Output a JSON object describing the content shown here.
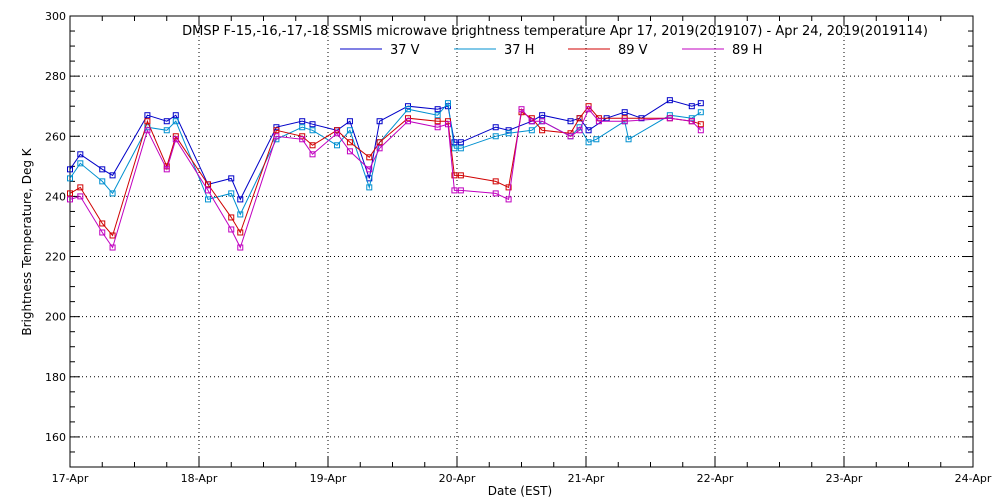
{
  "chart_data": {
    "type": "line",
    "title": "DMSP F-15,-16,-17,-18 SSMIS microwave brightness temperature Apr 17, 2019(2019107) - Apr 24, 2019(2019114)",
    "xlabel": "Date (EST)",
    "ylabel": "Brightness Temperature, Deg K",
    "xlim": [
      0,
      7
    ],
    "ylim": [
      150,
      300
    ],
    "x_ticks": [
      "17-Apr",
      "18-Apr",
      "19-Apr",
      "20-Apr",
      "21-Apr",
      "22-Apr",
      "23-Apr",
      "24-Apr"
    ],
    "y_ticks": [
      160,
      180,
      200,
      220,
      240,
      260,
      280,
      300
    ],
    "grid": true,
    "legend_position": "top",
    "series": [
      {
        "name": "37 V",
        "color": "#0000c8",
        "x": [
          0.0,
          0.08,
          0.25,
          0.33,
          0.6,
          0.75,
          0.82,
          1.07,
          1.25,
          1.32,
          1.6,
          1.8,
          1.88,
          2.07,
          2.17,
          2.32,
          2.4,
          2.62,
          2.85,
          2.93,
          2.98,
          3.03,
          3.3,
          3.4,
          3.58,
          3.66,
          3.88,
          3.95,
          4.02,
          4.16,
          4.3,
          4.43,
          4.65,
          4.82,
          4.89
        ],
        "y": [
          249,
          254,
          249,
          247,
          267,
          265,
          267,
          244,
          246,
          239,
          263,
          265,
          264,
          262,
          265,
          246,
          265,
          270,
          269,
          270,
          258,
          258,
          263,
          262,
          265,
          267,
          265,
          266,
          262,
          266,
          268,
          266,
          272,
          270,
          271
        ]
      },
      {
        "name": "37 H",
        "color": "#0090d0",
        "x": [
          0.0,
          0.08,
          0.25,
          0.33,
          0.6,
          0.75,
          0.82,
          1.07,
          1.25,
          1.32,
          1.6,
          1.8,
          1.88,
          2.07,
          2.17,
          2.32,
          2.4,
          2.62,
          2.85,
          2.93,
          2.98,
          3.03,
          3.3,
          3.4,
          3.58,
          3.66,
          3.88,
          3.95,
          4.02,
          4.08,
          4.3,
          4.33,
          4.65,
          4.82,
          4.89
        ],
        "y": [
          246,
          251,
          245,
          241,
          263,
          262,
          265,
          239,
          241,
          234,
          259,
          263,
          262,
          257,
          262,
          243,
          258,
          269,
          267,
          271,
          256,
          256,
          260,
          261,
          262,
          265,
          260,
          263,
          258,
          259,
          265,
          259,
          267,
          266,
          268
        ]
      },
      {
        "name": "89 V",
        "color": "#d00000",
        "x": [
          0.0,
          0.08,
          0.25,
          0.33,
          0.6,
          0.75,
          0.82,
          1.07,
          1.25,
          1.32,
          1.6,
          1.8,
          1.88,
          2.07,
          2.17,
          2.32,
          2.4,
          2.62,
          2.85,
          2.93,
          2.98,
          3.03,
          3.3,
          3.4,
          3.5,
          3.58,
          3.66,
          3.88,
          3.95,
          4.02,
          4.1,
          4.3,
          4.65,
          4.82,
          4.89
        ],
        "y": [
          241,
          243,
          231,
          227,
          265,
          250,
          260,
          244,
          233,
          228,
          262,
          260,
          257,
          262,
          258,
          253,
          258,
          266,
          265,
          265,
          247,
          247,
          245,
          243,
          268,
          266,
          262,
          261,
          266,
          270,
          266,
          266,
          266,
          265,
          264
        ]
      },
      {
        "name": "89 H",
        "color": "#c000c0",
        "x": [
          0.0,
          0.08,
          0.25,
          0.33,
          0.6,
          0.75,
          0.82,
          1.07,
          1.25,
          1.32,
          1.6,
          1.8,
          1.88,
          2.07,
          2.17,
          2.32,
          2.4,
          2.62,
          2.85,
          2.93,
          2.98,
          3.03,
          3.3,
          3.4,
          3.5,
          3.58,
          3.66,
          3.88,
          3.95,
          4.02,
          4.1,
          4.3,
          4.65,
          4.82,
          4.89
        ],
        "y": [
          239,
          240,
          228,
          223,
          262,
          249,
          259,
          242,
          229,
          223,
          260,
          259,
          254,
          261,
          255,
          249,
          256,
          265,
          263,
          264,
          242,
          242,
          241,
          239,
          269,
          265,
          265,
          260,
          262,
          269,
          265,
          265,
          266,
          265,
          262
        ]
      }
    ]
  }
}
